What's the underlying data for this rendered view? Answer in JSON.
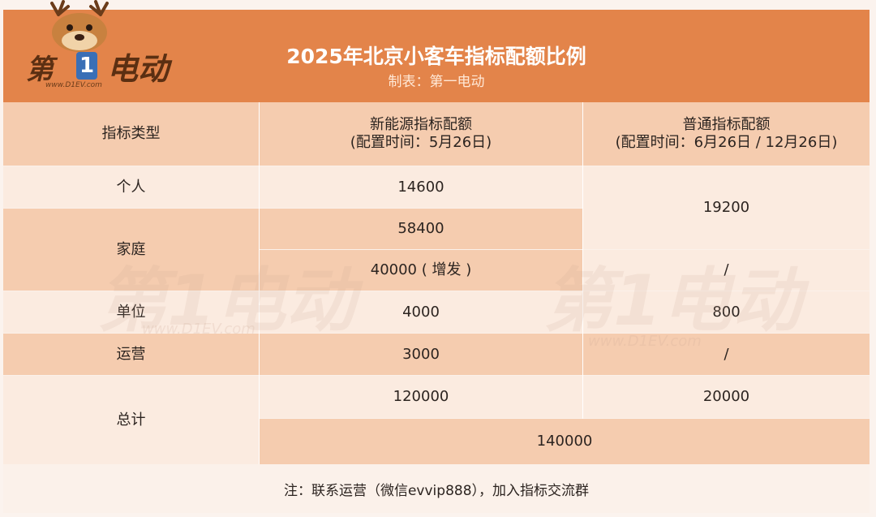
{
  "header": {
    "title": "2025年北京小客车指标配额比例",
    "subtitle": "制表：第一电动"
  },
  "logo": {
    "text_1": "第",
    "badge": "1",
    "text_2": "电动",
    "url": "www.D1EV.com"
  },
  "table": {
    "headers": {
      "type": "指标类型",
      "nev_line1": "新能源指标配额",
      "nev_line2": "(配置时间：5月26日)",
      "regular_line1": "普通指标配额",
      "regular_line2": "(配置时间：6月26日 / 12月26日)"
    },
    "rows": {
      "personal": {
        "label": "个人",
        "nev": "14600"
      },
      "personal_family_regular": "19200",
      "family": {
        "label": "家庭",
        "nev": "58400",
        "nev_extra": "40000 ( 增发 )",
        "regular_extra": "/"
      },
      "unit": {
        "label": "单位",
        "nev": "4000",
        "regular": "800"
      },
      "operation": {
        "label": "运营",
        "nev": "3000",
        "regular": "/"
      },
      "total": {
        "label": "总计",
        "nev": "120000",
        "regular": "20000",
        "grand": "140000"
      }
    }
  },
  "note": "注：联系运营（微信evvip888），加入指标交流群",
  "colors": {
    "header_bg": "#e3844a",
    "peach": "#f5ccaf",
    "light": "#fbebe0"
  }
}
